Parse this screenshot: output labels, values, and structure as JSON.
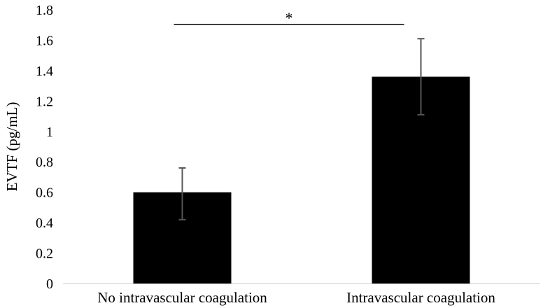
{
  "chart_data": {
    "type": "bar",
    "title": "",
    "xlabel": "",
    "ylabel": "EVTF (pg/mL)",
    "ylim": [
      0,
      1.8
    ],
    "yticks": [
      "0",
      "0.2",
      "0.4",
      "0.6",
      "0.8",
      "1",
      "1.2",
      "1.4",
      "1.6",
      "1.8"
    ],
    "categories": [
      "No intravascular coagulation",
      "Intravascular coagulation"
    ],
    "values": [
      0.6,
      1.36
    ],
    "error_low": [
      0.42,
      1.11
    ],
    "error_high": [
      0.76,
      1.61
    ],
    "bar_color": "#000000",
    "error_color": "#555555",
    "grid": false,
    "significance": {
      "label": "*",
      "between": [
        0,
        1
      ]
    }
  }
}
